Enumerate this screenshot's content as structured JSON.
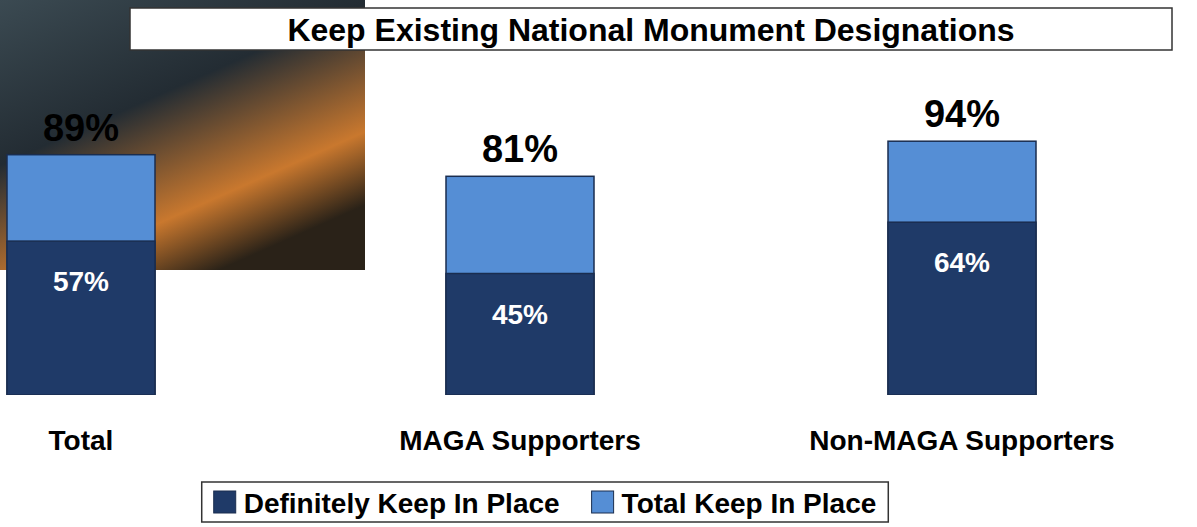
{
  "chart_data": {
    "type": "bar",
    "title": "Keep Existing National Monument Designations",
    "categories": [
      "Total",
      "MAGA Supporters",
      "Non-MAGA Supporters"
    ],
    "series": [
      {
        "name": "Definitely Keep In Place",
        "color": "#1f3a68",
        "values": [
          57,
          45,
          64
        ],
        "value_labels": [
          "57%",
          "45%",
          "64%"
        ]
      },
      {
        "name": "Total Keep In Place",
        "color": "#558ed5",
        "values": [
          89,
          81,
          94
        ],
        "value_labels": [
          "89%",
          "81%",
          "94%"
        ]
      }
    ],
    "ylim": [
      0,
      100
    ],
    "stacked": false,
    "data_labels": true,
    "tick_labels": false,
    "grid": false,
    "legend": "bottom"
  }
}
